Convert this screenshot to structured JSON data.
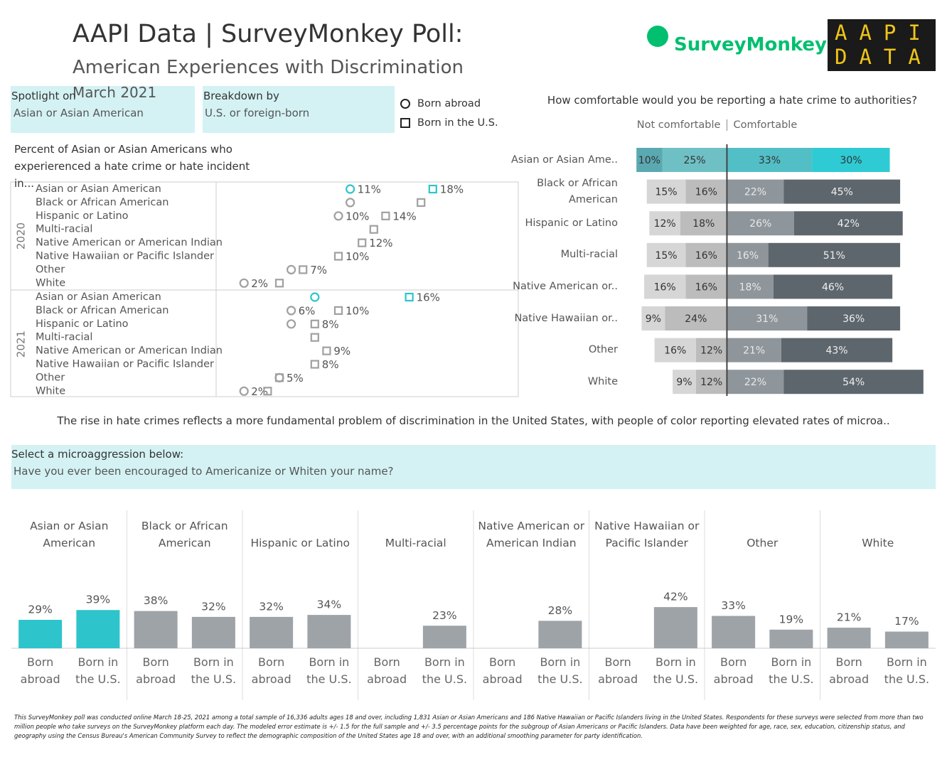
{
  "header": {
    "title": "AAPI Data | SurveyMonkey Poll:",
    "subtitle": "American Experiences with Discrimination",
    "date": "March 2021",
    "logo_surveymonkey": "SurveyMonkey",
    "logo_aapi": [
      "AAPI",
      "DATA"
    ]
  },
  "filters": [
    {
      "label": "Spotlight on",
      "value": "Asian or Asian American"
    },
    {
      "label": "Breakdown by",
      "value": "U.S. or foreign-born"
    },
    {
      "label": "Select a microaggression below:",
      "value": "Have you ever been encouraged to Americanize or Whiten your name?"
    }
  ],
  "annotation": "The rise in hate crimes reflects a more fundamental problem of discrimination in the United States, with people of color reporting elevated rates of microa..",
  "footnote": "This SurveyMonkey poll was conducted online March 18-25, 2021 among a total sample of 16,336 adults ages 18 and over, including 1,831 Asian or Asian Americans and 186 Native Hawaiian or Pacific Islanders living in the United States. Respondents for these surveys were selected from more than two million people who take surveys on the SurveyMonkey platform each day.  The modeled error estimate is +/-  1.5 for the full sample and +/-  3.5 percentage points for the subgroup of Asian Americans or Pacific Islanders. Data have been weighted for age, race, sex, education, citizenship status, and geography using the Census Bureau's American Community Survey to reflect the demographic composition of the United States age 18 and over, with an additional smoothing parameter for party identification.",
  "chart_data": [
    {
      "type": "dot",
      "title": "Percent of Asian or Asian Americans who experierenced a hate crime or hate incident in...",
      "panels": [
        "2020",
        "2021"
      ],
      "categories": [
        "Asian or Asian American",
        "Black or African American",
        "Hispanic or Latino",
        "Multi-racial",
        "Native American or American Indian",
        "Native Hawaiian or Pacific Islander",
        "Other",
        "White"
      ],
      "xlim": [
        0,
        25
      ],
      "color": "#a0a0a0",
      "highlight_color": "#2ec4cc",
      "highlight_category": 0,
      "series": [
        {
          "name": "Born abroad",
          "marker": "circle",
          "values": [
            [
              11,
              11,
              10,
              null,
              null,
              null,
              6,
              2
            ],
            [
              8,
              6,
              6,
              null,
              null,
              null,
              5,
              2
            ]
          ],
          "value_labels": [
            [
              "11%",
              null,
              "10%",
              null,
              null,
              null,
              null,
              "2%"
            ],
            [
              null,
              "6%",
              null,
              null,
              null,
              null,
              null,
              "2%"
            ]
          ]
        },
        {
          "name": "Born in the U.S.",
          "marker": "square",
          "values": [
            [
              18,
              17,
              14,
              13,
              12,
              10,
              7,
              5
            ],
            [
              16,
              10,
              8,
              8,
              9,
              8,
              5,
              4
            ]
          ],
          "value_labels": [
            [
              "18%",
              null,
              "14%",
              null,
              "12%",
              "10%",
              "7%",
              null
            ],
            [
              "16%",
              "10%",
              "8%",
              null,
              "9%",
              "8%",
              "5%",
              null
            ]
          ]
        }
      ]
    },
    {
      "type": "diverging_bar",
      "title": "How comfortable would you be reporting a hate crime to authorities?",
      "axis_labels": [
        "Not comfortable",
        "Comfortable"
      ],
      "categories": [
        "Asian or Asian Ame..",
        "Black or African American",
        "Hispanic or Latino",
        "Multi-racial",
        "Native American or..",
        "Native Hawaiian or..",
        "Other",
        "White"
      ],
      "xlim": [
        -40,
        81
      ],
      "highlight_category": 0,
      "highlight_label_color": "#333333",
      "series": [
        {
          "side": "left",
          "color": "#d6d6d6",
          "highlight_color": "#5aa9b1",
          "label_color": "#333333",
          "values": [
            10,
            15,
            12,
            15,
            16,
            9,
            16,
            9
          ],
          "value_labels": [
            "10%",
            "15%",
            "12%",
            "15%",
            "16%",
            "9%",
            "16%",
            "9%"
          ]
        },
        {
          "side": "left",
          "color": "#bcbcbc",
          "highlight_color": "#6fc0c5",
          "label_color": "#333333",
          "values": [
            25,
            16,
            18,
            16,
            16,
            24,
            12,
            12
          ],
          "value_labels": [
            "25%",
            "16%",
            "18%",
            "16%",
            "16%",
            "24%",
            "12%",
            "12%"
          ]
        },
        {
          "side": "right",
          "color": "#8e969c",
          "highlight_color": "#52bfc7",
          "label_color": "#e8e8e8",
          "values": [
            33,
            22,
            26,
            16,
            18,
            31,
            21,
            22
          ],
          "value_labels": [
            "33%",
            "22%",
            "26%",
            "16%",
            "18%",
            "31%",
            "21%",
            "22%"
          ]
        },
        {
          "side": "right",
          "color": "#5e666d",
          "highlight_color": "#2ecbd4",
          "label_color": "#eeeeee",
          "values": [
            30,
            45,
            42,
            51,
            46,
            36,
            43,
            54
          ],
          "value_labels": [
            "30%",
            "45%",
            "42%",
            "51%",
            "46%",
            "36%",
            "43%",
            "54%"
          ]
        }
      ]
    },
    {
      "type": "bar",
      "categories": [
        "Asian or Asian American",
        "Black or African American",
        "Hispanic or Latino",
        "Multi-racial",
        "Native American or American Indian",
        "Native Hawaiian or Pacific Islander",
        "Other",
        "White"
      ],
      "ylim": [
        0,
        140
      ],
      "color": "#9ea3a8",
      "highlight_color": "#2ec4cc",
      "highlight_category": 0,
      "series": [
        {
          "name": "Born abroad",
          "values": [
            29,
            38,
            32,
            null,
            null,
            null,
            33,
            21
          ],
          "value_labels": [
            "29%",
            "38%",
            "32%",
            null,
            null,
            null,
            "33%",
            "21%"
          ]
        },
        {
          "name": "Born in the U.S.",
          "values": [
            39,
            32,
            34,
            23,
            28,
            42,
            19,
            17
          ],
          "value_labels": [
            "39%",
            "32%",
            "34%",
            "23%",
            "28%",
            "42%",
            "19%",
            "17%"
          ]
        }
      ]
    }
  ]
}
